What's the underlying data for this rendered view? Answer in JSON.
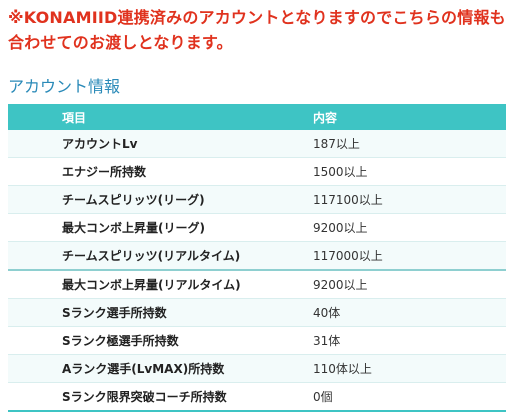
{
  "notice": {
    "line1": "※KONAMIID連携済みのアカウントとなりますのでこちらの情報も",
    "line2": "合わせてのお渡しとなります。"
  },
  "section_title": "アカウント情報",
  "table": {
    "headers": [
      "項目",
      "内容"
    ],
    "rows": [
      [
        "アカウントLv",
        "187以上"
      ],
      [
        "エナジー所持数",
        "1500以上"
      ],
      [
        "チームスピリッツ(リーグ)",
        "117100以上"
      ],
      [
        "最大コンボ上昇量(リーグ)",
        "9200以上"
      ],
      [
        "チームスピリッツ(リアルタイム)",
        "117000以上"
      ],
      [
        "最大コンボ上昇量(リアルタイム)",
        "9200以上"
      ],
      [
        "Sランク選手所持数",
        "40体"
      ],
      [
        "Sランク極選手所持数",
        "31体"
      ],
      [
        "Aランク選手(LvMAX)所持数",
        "110体以上"
      ],
      [
        "Sランク限界突破コーチ所持数",
        "0個"
      ]
    ]
  },
  "colors": {
    "notice": "#e0321e",
    "title": "#2a8ab8",
    "header_bg": "#3ec4c4",
    "row_alt": "#f3fbfb"
  }
}
